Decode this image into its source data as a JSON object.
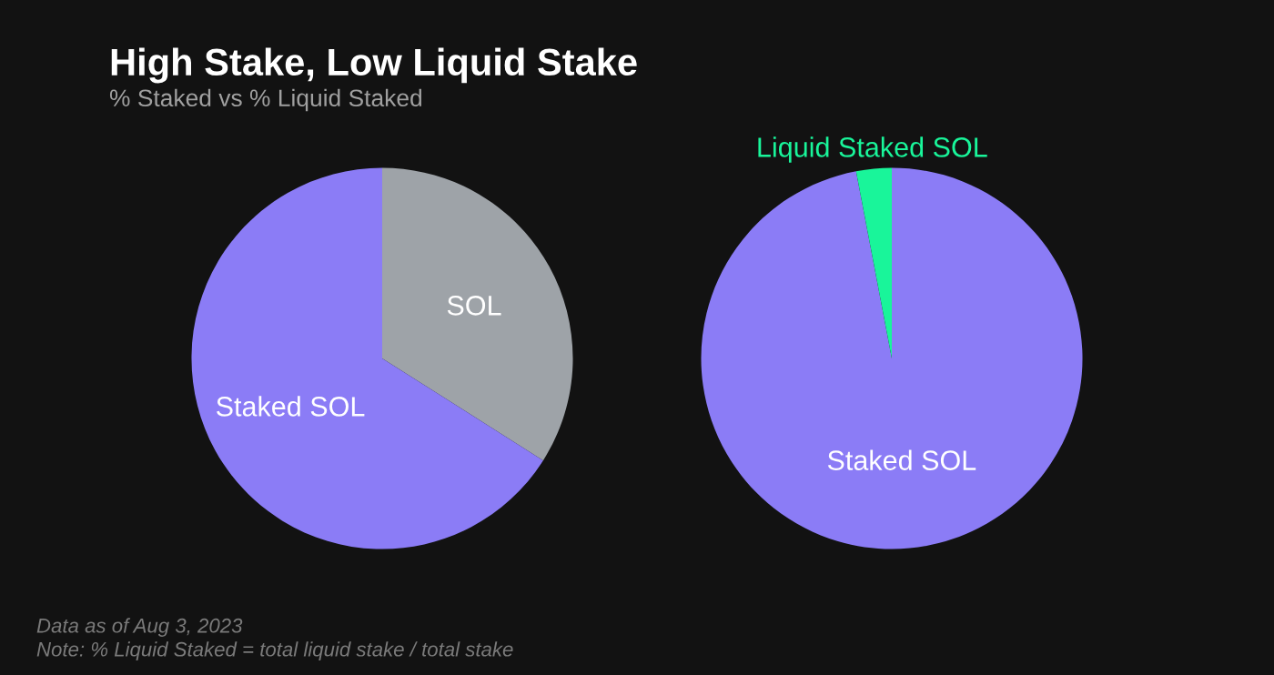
{
  "chart_data": [
    {
      "type": "pie",
      "title": "High Stake, Low Liquid Stake",
      "subtitle": "% Staked vs % Liquid Staked",
      "categories": [
        "SOL",
        "Staked SOL"
      ],
      "values": [
        34,
        66
      ],
      "colors": [
        "#9ea3a8",
        "#8b7cf6"
      ],
      "annotations": [
        "Data as of Aug 3, 2023",
        "Note: % Liquid Staked = total liquid stake / total stake"
      ]
    },
    {
      "type": "pie",
      "categories": [
        "Staked SOL",
        "Liquid Staked SOL"
      ],
      "values": [
        97,
        3
      ],
      "colors": [
        "#8b7cf6",
        "#19f59a"
      ]
    }
  ]
}
